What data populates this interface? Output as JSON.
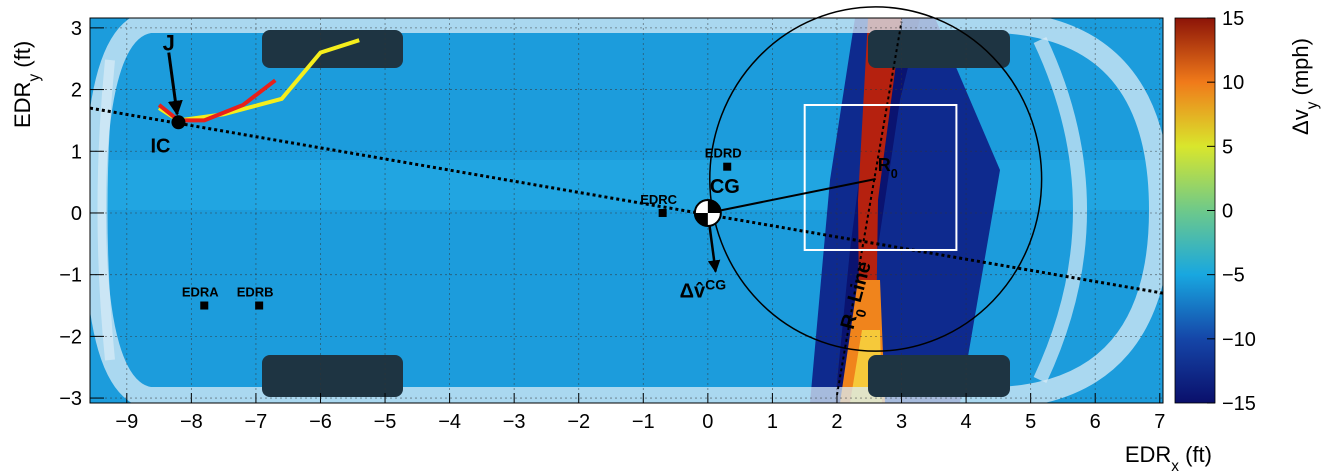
{
  "chart_data": {
    "type": "scatter",
    "x_label": {
      "text": "EDR",
      "sub": "x",
      "unit": " (ft)"
    },
    "y_label": {
      "text": "EDR",
      "sub": "y",
      "unit": " (ft)"
    },
    "xlim": [
      -9.57,
      7.05
    ],
    "ylim": [
      -3.08,
      3.16
    ],
    "xticks": [
      {
        "value": -9,
        "label": "−9"
      },
      {
        "value": -8,
        "label": "−8"
      },
      {
        "value": -7,
        "label": "−7"
      },
      {
        "value": -6,
        "label": "−6"
      },
      {
        "value": -5,
        "label": "−5"
      },
      {
        "value": -4,
        "label": "−4"
      },
      {
        "value": -3,
        "label": "−3"
      },
      {
        "value": -2,
        "label": "−2"
      },
      {
        "value": -1,
        "label": "−1"
      },
      0,
      1,
      2,
      3,
      4,
      5,
      6,
      7
    ],
    "yticks": [
      {
        "value": -3,
        "label": "−3"
      },
      {
        "value": -2,
        "label": "−2"
      },
      {
        "value": -1,
        "label": "−1"
      },
      0,
      1,
      2,
      3
    ],
    "grid": true,
    "colorbar": {
      "label": {
        "text": "Δv",
        "sub": "y",
        "unit": " (mph)"
      },
      "zlim": [
        -15,
        15
      ],
      "zticks": [
        {
          "value": -15,
          "label": "−15"
        },
        {
          "value": -10,
          "label": "−10"
        },
        {
          "value": -5,
          "label": "−5"
        },
        0,
        5,
        10,
        15
      ],
      "color_stops": [
        {
          "value": -15,
          "color": "#0a0f6b"
        },
        {
          "value": -10,
          "color": "#1546a8"
        },
        {
          "value": -5,
          "color": "#18a7e0"
        },
        {
          "value": 0,
          "color": "#6ec98a"
        },
        {
          "value": 5,
          "color": "#d9e62c"
        },
        {
          "value": 10,
          "color": "#f07a1a"
        },
        {
          "value": 15,
          "color": "#8c1408"
        }
      ]
    },
    "points": [
      {
        "name": "EDRA",
        "x": -7.8,
        "y": -1.5
      },
      {
        "name": "EDRB",
        "x": -6.95,
        "y": -1.5
      },
      {
        "name": "EDRC",
        "x": -0.7,
        "y": 0
      },
      {
        "name": "EDRD",
        "x": 0.3,
        "y": 0.75
      }
    ],
    "paths": [
      {
        "color": "#f5ee1c",
        "x": [
          -8.5,
          -8.2,
          -7.5,
          -6.6,
          -6.0,
          -5.4
        ],
        "y": [
          1.7,
          1.5,
          1.6,
          1.85,
          2.6,
          2.8
        ]
      },
      {
        "color": "#e8201a",
        "x": [
          -8.5,
          -8.2,
          -7.8,
          -7.2,
          -6.7
        ],
        "y": [
          1.75,
          1.5,
          1.5,
          1.75,
          2.15
        ]
      }
    ],
    "reference_line": {
      "x": [
        -9.57,
        7.05
      ],
      "y": [
        1.7,
        -1.3
      ]
    },
    "circle": {
      "cx": 2.6,
      "cy": 0.55,
      "rx": 2.57,
      "ry": 2.79
    },
    "box": {
      "x": [
        1.5,
        3.85
      ],
      "y": [
        -0.6,
        1.75
      ]
    },
    "r0_line": {
      "x": [
        2.0,
        3.0
      ],
      "y": [
        -2.95,
        3.1
      ],
      "label": "R",
      "sub": "0",
      "suffix": " Line"
    },
    "ic": {
      "label": "IC",
      "x": -8.2,
      "y": 1.47
    },
    "cg": {
      "label": "CG",
      "x": 0,
      "y": 0
    },
    "r0": {
      "label": "R",
      "sub": "0",
      "x": 2.6,
      "y": 0.55
    },
    "j_arrow": {
      "label": "J",
      "x": [
        -8.35,
        -8.22
      ],
      "y": [
        2.6,
        1.6
      ]
    },
    "dv_arrow": {
      "label": "Δv̂",
      "sup": "CG",
      "x": [
        0,
        0.12
      ],
      "y": [
        0,
        -0.95
      ]
    }
  }
}
